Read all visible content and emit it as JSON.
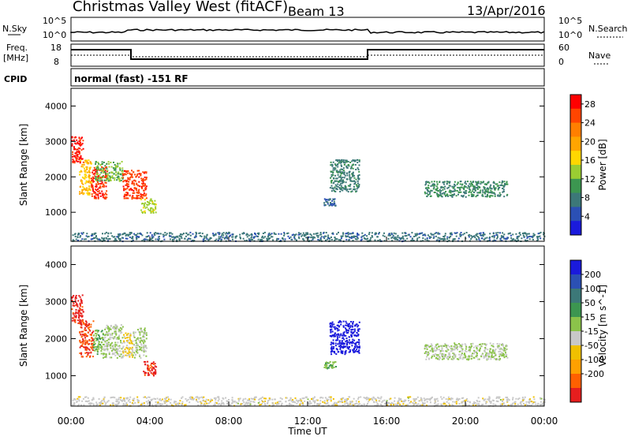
{
  "header": {
    "station": "Christmas Valley West (fitACF)",
    "beam": "Beam 13",
    "date": "13/Apr/2016"
  },
  "panels": {
    "nsky": {
      "left_label": "N.Sky",
      "right_label": "N.Search",
      "left_ticks": [
        "10^5",
        "10^0"
      ],
      "right_ticks": [
        "10^5",
        "10^0"
      ]
    },
    "freq": {
      "left_label_1": "Freq.",
      "left_label_2": "[MHz]",
      "right_label": "Nave",
      "left_ticks": [
        "18",
        "8"
      ],
      "right_ticks": [
        "60",
        "0"
      ]
    },
    "cpid": {
      "label": "CPID",
      "text": "normal (fast) -151 RF"
    }
  },
  "colors": {
    "power_scale": [
      "#1a1adc",
      "#2b50b4",
      "#3c7878",
      "#3c9650",
      "#9acd32",
      "#ffd700",
      "#ffa500",
      "#ff7f00",
      "#ff4500",
      "#ff0000"
    ],
    "velocity_scale": [
      "#1a1adc",
      "#2b50b4",
      "#3c7878",
      "#3c9650",
      "#8bc34a",
      "#c8c8c8",
      "#f0c000",
      "#ffa000",
      "#ff6000",
      "#e61e1e"
    ],
    "ground_scatter": "#c0c0c0"
  },
  "chart_data": [
    {
      "type": "heatmap",
      "title": "Power",
      "ylabel": "Slant Range [km]",
      "colorbar_label": "Power [dB]",
      "colorbar_ticks": [
        "4",
        "8",
        "12",
        "16",
        "20",
        "24",
        "28"
      ],
      "colorbar_range": [
        0,
        30
      ],
      "ylim": [
        180,
        4500
      ],
      "yticks": [
        "1000",
        "2000",
        "3000",
        "4000"
      ],
      "xlim_hours": [
        0,
        24
      ],
      "regions": [
        {
          "x0": 0.0,
          "x1": 0.6,
          "y0": 2400,
          "y1": 3200,
          "value": 28
        },
        {
          "x0": 0.4,
          "x1": 1.0,
          "y0": 1500,
          "y1": 2500,
          "value": 18
        },
        {
          "x0": 1.0,
          "x1": 1.8,
          "y0": 1400,
          "y1": 2300,
          "value": 27
        },
        {
          "x0": 1.2,
          "x1": 2.6,
          "y0": 1900,
          "y1": 2450,
          "value": 12
        },
        {
          "x0": 2.6,
          "x1": 3.8,
          "y0": 1400,
          "y1": 2200,
          "value": 26
        },
        {
          "x0": 3.5,
          "x1": 4.3,
          "y0": 1000,
          "y1": 1400,
          "value": 14
        },
        {
          "x0": 13.1,
          "x1": 14.6,
          "y0": 1600,
          "y1": 2500,
          "value": 8
        },
        {
          "x0": 12.8,
          "x1": 13.4,
          "y0": 1200,
          "y1": 1400,
          "value": 6
        },
        {
          "x0": 17.9,
          "x1": 22.1,
          "y0": 1450,
          "y1": 1900,
          "value": 9
        },
        {
          "x0": 0.0,
          "x1": 24.0,
          "y0": 200,
          "y1": 450,
          "value": 7
        }
      ]
    },
    {
      "type": "heatmap",
      "title": "Velocity",
      "ylabel": "Slant Range [km]",
      "xlabel": "Time UT",
      "colorbar_label": "Velocity [m s^-1]",
      "colorbar_ticks": [
        "200",
        "100",
        "50",
        "15",
        "-15",
        "-50",
        "-100",
        "-200"
      ],
      "colorbar_range": [
        -250,
        250
      ],
      "ylim": [
        180,
        4500
      ],
      "yticks": [
        "1000",
        "2000",
        "3000",
        "4000"
      ],
      "xticks": [
        "00:00",
        "04:00",
        "08:00",
        "12:00",
        "16:00",
        "20:00",
        "00:00"
      ],
      "xlim_hours": [
        0,
        24
      ],
      "regions": [
        {
          "x0": 0.0,
          "x1": 0.6,
          "y0": 2400,
          "y1": 3200,
          "value": -220
        },
        {
          "x0": 0.4,
          "x1": 1.1,
          "y0": 1500,
          "y1": 2500,
          "value": -200
        },
        {
          "x0": 1.1,
          "x1": 1.6,
          "y0": 1600,
          "y1": 2300,
          "value": 40
        },
        {
          "x0": 1.6,
          "x1": 2.6,
          "y0": 1500,
          "y1": 2400,
          "value": 0
        },
        {
          "x0": 2.6,
          "x1": 3.1,
          "y0": 1500,
          "y1": 2200,
          "value": -60
        },
        {
          "x0": 3.1,
          "x1": 3.8,
          "y0": 1500,
          "y1": 2300,
          "value": 0
        },
        {
          "x0": 3.6,
          "x1": 4.3,
          "y0": 1000,
          "y1": 1400,
          "value": -220
        },
        {
          "x0": 13.1,
          "x1": 14.6,
          "y0": 1600,
          "y1": 2500,
          "value": 230
        },
        {
          "x0": 12.8,
          "x1": 13.4,
          "y0": 1200,
          "y1": 1400,
          "value": 40
        },
        {
          "x0": 17.9,
          "x1": 22.1,
          "y0": 1450,
          "y1": 1900,
          "value": 0
        },
        {
          "x0": 0.0,
          "x1": 24.0,
          "y0": 200,
          "y1": 450,
          "value": -30
        }
      ]
    }
  ]
}
